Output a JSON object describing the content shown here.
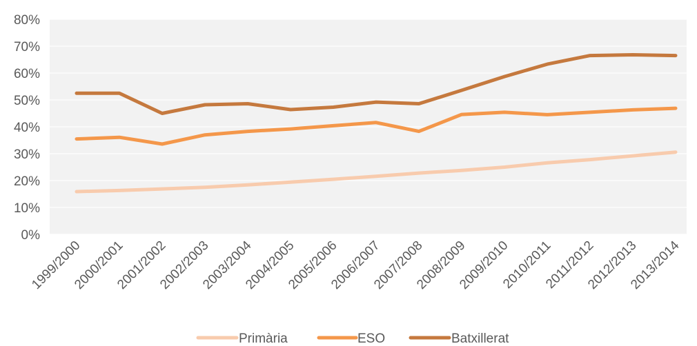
{
  "chart_data": {
    "type": "line",
    "title": "",
    "xlabel": "",
    "ylabel": "",
    "ylim": [
      0,
      80
    ],
    "y_ticks": [
      "0%",
      "10%",
      "20%",
      "30%",
      "40%",
      "50%",
      "60%",
      "70%",
      "80%"
    ],
    "grid": true,
    "legend_position": "bottom",
    "background": "#f2f2f2",
    "categories": [
      "1999/2000",
      "2000/2001",
      "2001/2002",
      "2002/2003",
      "2003/2004",
      "2004/2005",
      "2005/2006",
      "2006/2007",
      "2007/2008",
      "2008/2009",
      "2009/2010",
      "2010/2011",
      "2011/2012",
      "2012/2013",
      "2013/2014"
    ],
    "series": [
      {
        "name": "Primària",
        "color": "#f8cbad",
        "values": [
          15.9,
          16.3,
          16.9,
          17.5,
          18.4,
          19.4,
          20.5,
          21.6,
          22.8,
          23.8,
          25.0,
          26.6,
          27.8,
          29.2,
          30.6
        ]
      },
      {
        "name": "ESO",
        "color": "#f4974a",
        "values": [
          35.5,
          36.1,
          33.6,
          37.0,
          38.3,
          39.2,
          40.4,
          41.6,
          38.3,
          44.6,
          45.4,
          44.5,
          45.4,
          46.3,
          46.9
        ]
      },
      {
        "name": "Batxillerat",
        "color": "#c5793e",
        "values": [
          52.5,
          52.5,
          45.0,
          48.2,
          48.6,
          46.4,
          47.3,
          49.2,
          48.6,
          53.6,
          58.7,
          63.3,
          66.5,
          66.8,
          66.5
        ]
      }
    ]
  }
}
